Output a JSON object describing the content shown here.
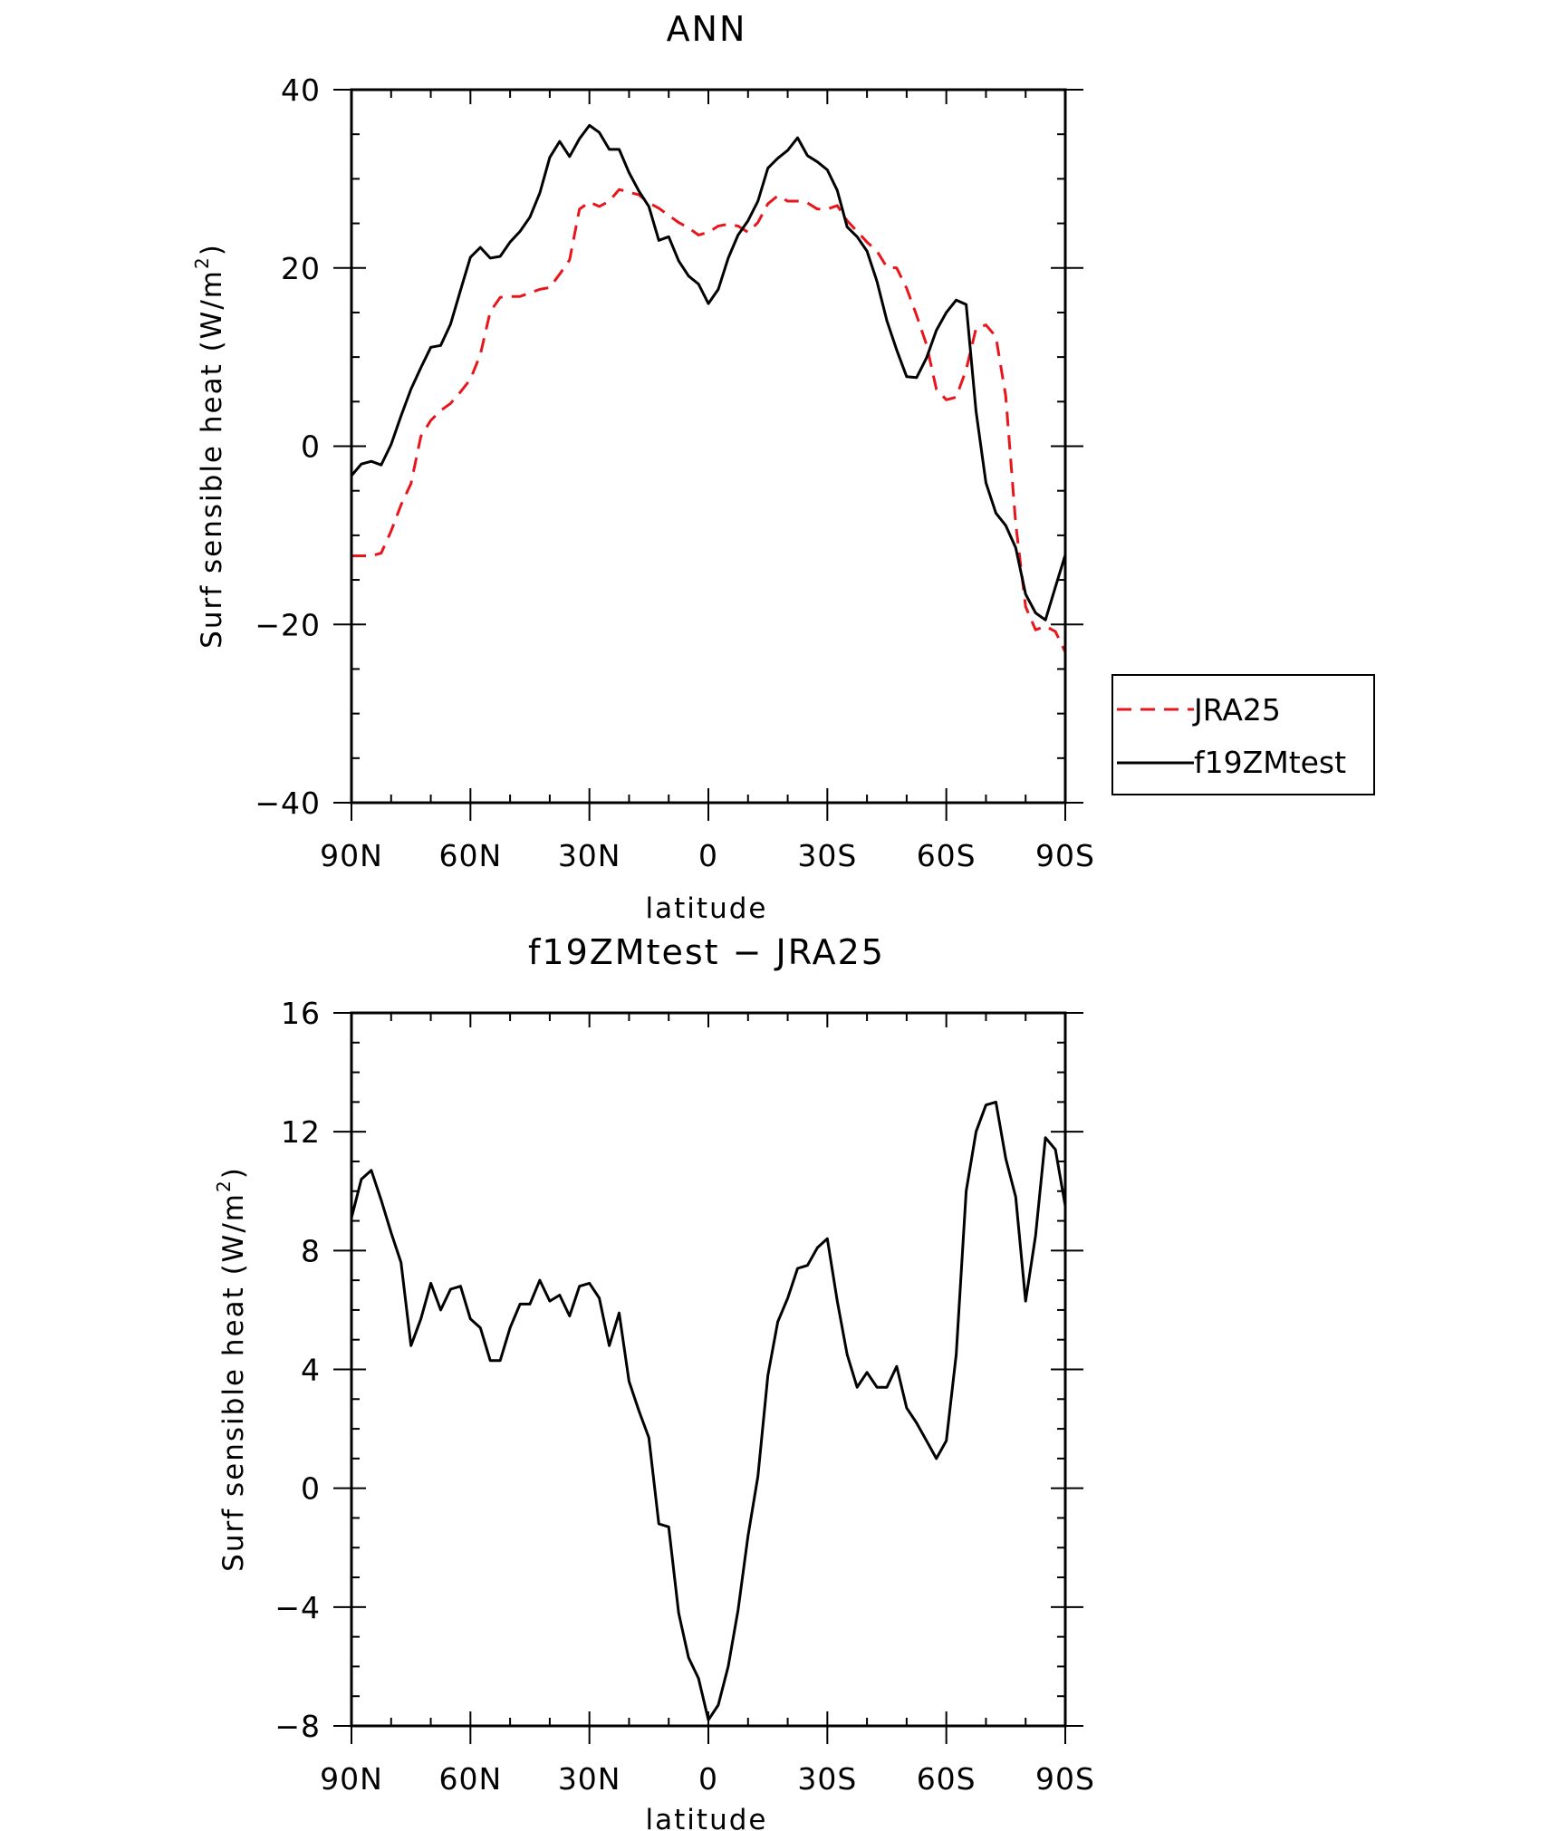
{
  "chart_data": [
    {
      "type": "line",
      "title": "ANN",
      "xlabel": "latitude",
      "ylabel": "Surf sensible heat (W/m",
      "ylabel_superscript": "2",
      "ylabel_suffix": ")",
      "xlim": [
        90,
        -90
      ],
      "ylim": [
        -40,
        40
      ],
      "x_ticks": [
        90,
        60,
        30,
        0,
        -30,
        -60,
        -90
      ],
      "x_tick_labels": [
        "90N",
        "60N",
        "30N",
        "0",
        "30S",
        "60S",
        "90S"
      ],
      "y_ticks": [
        40,
        20,
        0,
        -20,
        -40
      ],
      "y_tick_labels": [
        "40",
        "20",
        "0",
        "−20",
        "−40"
      ],
      "legend_position": "right",
      "series": [
        {
          "name": "JRA25",
          "color": "#e8151b",
          "dash": "dashed",
          "x": [
            90,
            87.5,
            85,
            82.5,
            80,
            77.5,
            75,
            72.5,
            70,
            67.5,
            65,
            62.5,
            60,
            57.5,
            55,
            52.5,
            50,
            47.5,
            45,
            42.5,
            40,
            37.5,
            35,
            32.5,
            30,
            27.5,
            25,
            22.5,
            20,
            17.5,
            15,
            12.5,
            10,
            7.5,
            5,
            2.5,
            0,
            -2.5,
            -5,
            -7.5,
            -10,
            -12.5,
            -15,
            -17.5,
            -20,
            -22.5,
            -25,
            -27.5,
            -30,
            -32.5,
            -35,
            -37.5,
            -40,
            -42.5,
            -45,
            -47.5,
            -50,
            -52.5,
            -55,
            -57.5,
            -60,
            -62.5,
            -65,
            -67.5,
            -70,
            -72.5,
            -75,
            -77.5,
            -80,
            -82.5,
            -85,
            -87.5,
            -90
          ],
          "values": [
            -12.3,
            -12.3,
            -12.3,
            -12.0,
            -9.5,
            -6.6,
            -4.2,
            1.1,
            2.9,
            4.0,
            4.8,
            6.1,
            7.5,
            10.3,
            15.1,
            16.7,
            16.8,
            16.8,
            17.2,
            17.6,
            17.8,
            19.3,
            20.9,
            26.6,
            27.4,
            26.9,
            27.5,
            28.8,
            28.5,
            28.2,
            27.3,
            26.7,
            25.9,
            25.1,
            24.5,
            23.7,
            24.0,
            24.7,
            24.9,
            24.7,
            24.0,
            25.1,
            27.2,
            28.1,
            27.5,
            27.5,
            27.3,
            26.6,
            26.6,
            27.0,
            25.3,
            24.1,
            22.9,
            21.9,
            20.1,
            20.0,
            17.7,
            14.7,
            11.4,
            6.4,
            5.2,
            5.5,
            8.6,
            13.2,
            13.6,
            12.3,
            5.6,
            -8.7,
            -18.0,
            -20.6,
            -20.2,
            -20.8,
            -23.1
          ]
        },
        {
          "name": "f19ZMtest",
          "color": "#000000",
          "dash": "solid",
          "x": [
            90,
            87.5,
            85,
            82.5,
            80,
            77.5,
            75,
            72.5,
            70,
            67.5,
            65,
            62.5,
            60,
            57.5,
            55,
            52.5,
            50,
            47.5,
            45,
            42.5,
            40,
            37.5,
            35,
            32.5,
            30,
            27.5,
            25,
            22.5,
            20,
            17.5,
            15,
            12.5,
            10,
            7.5,
            5,
            2.5,
            0,
            -2.5,
            -5,
            -7.5,
            -10,
            -12.5,
            -15,
            -17.5,
            -20,
            -22.5,
            -25,
            -27.5,
            -30,
            -32.5,
            -35,
            -37.5,
            -40,
            -42.5,
            -45,
            -47.5,
            -50,
            -52.5,
            -55,
            -57.5,
            -60,
            -62.5,
            -65,
            -67.5,
            -70,
            -72.5,
            -75,
            -77.5,
            -80,
            -82.5,
            -85,
            -87.5,
            -90
          ],
          "values": [
            -3.3,
            -2.0,
            -1.7,
            -2.1,
            0.2,
            3.4,
            6.4,
            8.8,
            11.1,
            11.3,
            13.7,
            17.5,
            21.2,
            22.3,
            21.1,
            21.3,
            22.9,
            24.1,
            25.7,
            28.4,
            32.4,
            34.2,
            32.5,
            34.5,
            36.0,
            35.2,
            33.3,
            33.3,
            30.7,
            28.6,
            26.9,
            23.1,
            23.5,
            20.8,
            19.1,
            18.2,
            16.0,
            17.6,
            21.1,
            23.7,
            25.3,
            27.5,
            31.2,
            32.3,
            33.2,
            34.6,
            32.6,
            31.9,
            31.0,
            28.7,
            24.6,
            23.5,
            21.9,
            18.5,
            14.1,
            10.8,
            7.8,
            7.7,
            9.9,
            13.0,
            15.0,
            16.4,
            15.9,
            3.9,
            -4.1,
            -7.5,
            -8.9,
            -11.4,
            -16.6,
            -18.7,
            -19.5,
            -15.8,
            -12.2
          ]
        }
      ]
    },
    {
      "type": "line",
      "title": "f19ZMtest − JRA25",
      "xlabel": "latitude",
      "ylabel": "Surf sensible heat (W/m",
      "ylabel_superscript": "2",
      "ylabel_suffix": ")",
      "xlim": [
        90,
        -90
      ],
      "ylim": [
        -8,
        16
      ],
      "x_ticks": [
        90,
        60,
        30,
        0,
        -30,
        -60,
        -90
      ],
      "x_tick_labels": [
        "90N",
        "60N",
        "30N",
        "0",
        "30S",
        "60S",
        "90S"
      ],
      "y_ticks": [
        16,
        12,
        8,
        4,
        0,
        -4,
        -8
      ],
      "y_tick_labels": [
        "16",
        "12",
        "8",
        "4",
        "0",
        "−4",
        "−8"
      ],
      "series": [
        {
          "color": "#000000",
          "dash": "solid",
          "x": [
            90,
            87.5,
            85,
            82.5,
            80,
            77.5,
            75,
            72.5,
            70,
            67.5,
            65,
            62.5,
            60,
            57.5,
            55,
            52.5,
            50,
            47.5,
            45,
            42.5,
            40,
            37.5,
            35,
            32.5,
            30,
            27.5,
            25,
            22.5,
            20,
            17.5,
            15,
            12.5,
            10,
            7.5,
            5,
            2.5,
            0,
            -2.5,
            -5,
            -7.5,
            -10,
            -12.5,
            -15,
            -17.5,
            -20,
            -22.5,
            -25,
            -27.5,
            -30,
            -32.5,
            -35,
            -37.5,
            -40,
            -42.5,
            -45,
            -47.5,
            -50,
            -52.5,
            -55,
            -57.5,
            -60,
            -62.5,
            -65,
            -67.5,
            -70,
            -72.5,
            -75,
            -77.5,
            -80,
            -82.5,
            -85,
            -87.5,
            -90
          ],
          "values": [
            9.1,
            10.4,
            10.7,
            9.7,
            8.6,
            7.6,
            4.8,
            5.7,
            6.9,
            6.0,
            6.7,
            6.8,
            5.7,
            5.4,
            4.3,
            4.3,
            5.4,
            6.2,
            6.2,
            7.0,
            6.3,
            6.5,
            5.8,
            6.8,
            6.9,
            6.4,
            4.8,
            5.9,
            3.6,
            2.6,
            1.7,
            -1.2,
            -1.3,
            -4.2,
            -5.7,
            -6.4,
            -7.8,
            -7.3,
            -6.0,
            -4.1,
            -1.6,
            0.4,
            3.8,
            5.6,
            6.4,
            7.4,
            7.5,
            8.1,
            8.4,
            6.3,
            4.5,
            3.4,
            3.9,
            3.4,
            3.4,
            4.1,
            2.7,
            2.2,
            1.6,
            1.0,
            1.6,
            4.5,
            10.0,
            12.0,
            12.9,
            13.0,
            11.1,
            9.8,
            6.3,
            8.5,
            11.8,
            11.4,
            9.5
          ]
        }
      ]
    }
  ]
}
